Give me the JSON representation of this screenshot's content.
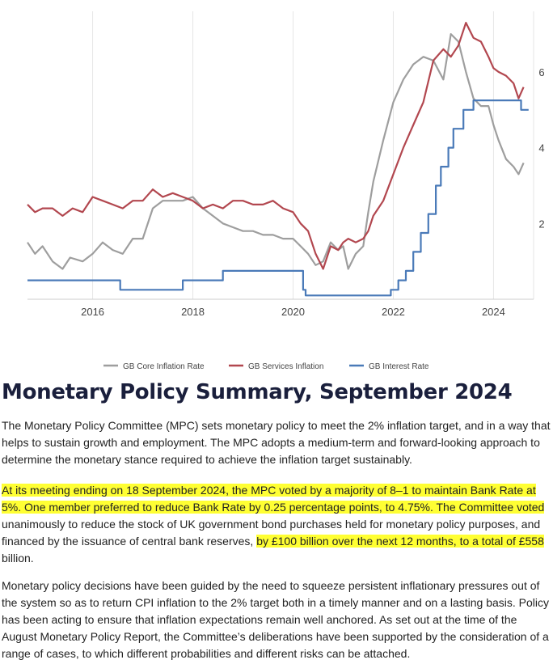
{
  "chart_data": {
    "type": "line",
    "xlim": [
      2014.7,
      2024.8
    ],
    "ylim": [
      0,
      7.6
    ],
    "x_ticks": [
      2016,
      2018,
      2020,
      2022,
      2024
    ],
    "x_tick_labels": [
      "2016",
      "2018",
      "2020",
      "2022",
      "2024"
    ],
    "y_ticks": [
      2,
      4,
      6
    ],
    "y_tick_labels": [
      "2",
      "4",
      "6"
    ],
    "grid": "vertical",
    "legend_position": "bottom",
    "series": [
      {
        "name": "GB Core Inflation Rate",
        "color": "#9e9e9e",
        "x": [
          2014.7,
          2014.85,
          2015.0,
          2015.2,
          2015.4,
          2015.55,
          2015.8,
          2016.0,
          2016.2,
          2016.4,
          2016.6,
          2016.8,
          2017.0,
          2017.2,
          2017.4,
          2017.6,
          2017.8,
          2018.0,
          2018.2,
          2018.4,
          2018.6,
          2018.8,
          2019.0,
          2019.2,
          2019.4,
          2019.6,
          2019.8,
          2020.0,
          2020.15,
          2020.3,
          2020.45,
          2020.6,
          2020.75,
          2020.9,
          2021.0,
          2021.1,
          2021.25,
          2021.4,
          2021.5,
          2021.6,
          2021.8,
          2022.0,
          2022.2,
          2022.4,
          2022.6,
          2022.8,
          2023.0,
          2023.15,
          2023.3,
          2023.45,
          2023.6,
          2023.75,
          2023.9,
          2024.0,
          2024.1,
          2024.25,
          2024.4,
          2024.5,
          2024.6
        ],
        "values": [
          1.5,
          1.2,
          1.4,
          1.0,
          0.8,
          1.1,
          1.0,
          1.2,
          1.5,
          1.3,
          1.2,
          1.6,
          1.6,
          2.4,
          2.6,
          2.6,
          2.6,
          2.7,
          2.4,
          2.2,
          2.0,
          1.9,
          1.8,
          1.8,
          1.7,
          1.7,
          1.6,
          1.6,
          1.4,
          1.2,
          0.9,
          1.0,
          1.5,
          1.3,
          1.4,
          0.8,
          1.2,
          1.4,
          2.3,
          3.1,
          4.2,
          5.2,
          5.8,
          6.2,
          6.4,
          6.3,
          5.8,
          7.0,
          6.8,
          6.0,
          5.3,
          5.1,
          5.1,
          4.6,
          4.2,
          3.7,
          3.5,
          3.3,
          3.6
        ]
      },
      {
        "name": "GB Services Inflation",
        "color": "#b2474f",
        "x": [
          2014.7,
          2014.85,
          2015.0,
          2015.2,
          2015.4,
          2015.6,
          2015.8,
          2016.0,
          2016.2,
          2016.4,
          2016.6,
          2016.8,
          2017.0,
          2017.2,
          2017.4,
          2017.6,
          2017.8,
          2018.0,
          2018.2,
          2018.4,
          2018.6,
          2018.8,
          2019.0,
          2019.2,
          2019.4,
          2019.6,
          2019.8,
          2020.0,
          2020.15,
          2020.3,
          2020.45,
          2020.6,
          2020.75,
          2020.9,
          2021.0,
          2021.1,
          2021.25,
          2021.4,
          2021.5,
          2021.6,
          2021.8,
          2022.0,
          2022.2,
          2022.4,
          2022.6,
          2022.8,
          2023.0,
          2023.15,
          2023.3,
          2023.45,
          2023.6,
          2023.75,
          2023.9,
          2024.0,
          2024.1,
          2024.25,
          2024.4,
          2024.5,
          2024.6
        ],
        "values": [
          2.5,
          2.3,
          2.4,
          2.4,
          2.2,
          2.4,
          2.3,
          2.7,
          2.6,
          2.5,
          2.4,
          2.6,
          2.6,
          2.9,
          2.7,
          2.8,
          2.7,
          2.6,
          2.4,
          2.5,
          2.4,
          2.6,
          2.6,
          2.5,
          2.5,
          2.6,
          2.4,
          2.3,
          2.0,
          1.8,
          1.2,
          0.8,
          1.4,
          1.3,
          1.5,
          1.6,
          1.5,
          1.6,
          1.8,
          2.2,
          2.6,
          3.3,
          4.0,
          4.6,
          5.2,
          6.3,
          6.6,
          6.4,
          6.7,
          7.3,
          6.9,
          6.8,
          6.4,
          6.1,
          6.0,
          5.9,
          5.7,
          5.3,
          5.6
        ]
      },
      {
        "name": "GB Interest Rate",
        "color": "#4a7ab8",
        "x": [
          2014.7,
          2016.55,
          2016.55,
          2017.8,
          2017.8,
          2018.6,
          2018.6,
          2020.2,
          2020.2,
          2020.25,
          2020.25,
          2021.95,
          2021.95,
          2022.1,
          2022.1,
          2022.25,
          2022.25,
          2022.4,
          2022.4,
          2022.55,
          2022.55,
          2022.7,
          2022.7,
          2022.85,
          2022.85,
          2022.95,
          2022.95,
          2023.1,
          2023.1,
          2023.2,
          2023.2,
          2023.4,
          2023.4,
          2023.6,
          2023.6,
          2024.55,
          2024.55,
          2024.7
        ],
        "values": [
          0.5,
          0.5,
          0.25,
          0.25,
          0.5,
          0.5,
          0.75,
          0.75,
          0.25,
          0.25,
          0.1,
          0.1,
          0.25,
          0.25,
          0.5,
          0.5,
          0.75,
          0.75,
          1.25,
          1.25,
          1.75,
          1.75,
          2.25,
          2.25,
          3.0,
          3.0,
          3.5,
          3.5,
          4.0,
          4.0,
          4.5,
          4.5,
          5.0,
          5.0,
          5.25,
          5.25,
          5.0,
          5.0
        ]
      }
    ]
  },
  "summary": {
    "title": "Monetary Policy Summary, September 2024",
    "paragraph1": "The Monetary Policy Committee (MPC) sets monetary policy to meet the 2% inflation target, and in a way that helps to sustain growth and employment. The MPC adopts a medium-term and forward-looking approach to determine the monetary stance required to achieve the inflation target sustainably.",
    "paragraph2_highlight1": "At its meeting ending on 18 September 2024, the MPC voted by a majority of 8–1 to maintain Bank Rate at 5%. One member preferred to reduce Bank Rate by 0.25 percentage points, to 4.75%. The Committee voted",
    "paragraph2_plain": " unanimously to reduce the stock of UK government bond purchases held for monetary policy purposes, and financed by the issuance of central bank reserves, ",
    "paragraph2_highlight2": "by £100 billion over the next 12 months, to a total of £558",
    "paragraph2_tail": " billion.",
    "paragraph3": "Monetary policy decisions have been guided by the need to squeeze persistent inflationary pressures out of the system so as to return CPI inflation to the 2% target both in a timely manner and on a lasting basis. Policy has been acting to ensure that inflation expectations remain well anchored. As set out at the time of the August Monetary Policy Report, the Committee’s deliberations have been supported by the consideration of a range of cases, to which different probabilities and different risks can be attached."
  }
}
